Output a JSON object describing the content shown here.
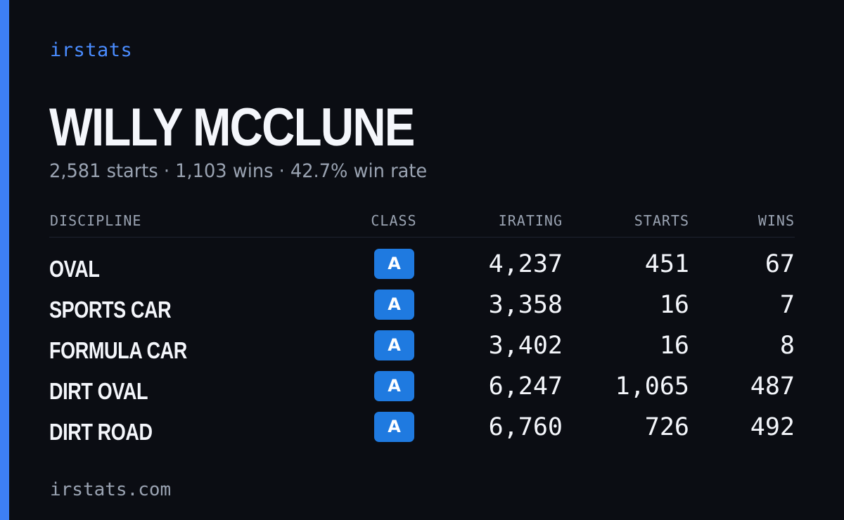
{
  "brand": "irstats",
  "driver": {
    "name": "WILLY MCCLUNE",
    "summary": "2,581 starts · 1,103 wins · 42.7% win rate"
  },
  "table": {
    "headers": {
      "discipline": "DISCIPLINE",
      "class": "CLASS",
      "irating": "IRATING",
      "starts": "STARTS",
      "wins": "WINS"
    },
    "rows": [
      {
        "discipline": "OVAL",
        "class": "A",
        "irating": "4,237",
        "starts": "451",
        "wins": "67"
      },
      {
        "discipline": "SPORTS CAR",
        "class": "A",
        "irating": "3,358",
        "starts": "16",
        "wins": "7"
      },
      {
        "discipline": "FORMULA CAR",
        "class": "A",
        "irating": "3,402",
        "starts": "16",
        "wins": "8"
      },
      {
        "discipline": "DIRT OVAL",
        "class": "A",
        "irating": "6,247",
        "starts": "1,065",
        "wins": "487"
      },
      {
        "discipline": "DIRT ROAD",
        "class": "A",
        "irating": "6,760",
        "starts": "726",
        "wins": "492"
      }
    ]
  },
  "footer": "irstats.com",
  "colors": {
    "background": "#0b0d13",
    "accent": "#3d7ff5",
    "brand": "#4a8cff",
    "class_badge": "#1f7ae0",
    "muted_text": "#9aa3b2",
    "primary_text": "#f4f6fb"
  }
}
